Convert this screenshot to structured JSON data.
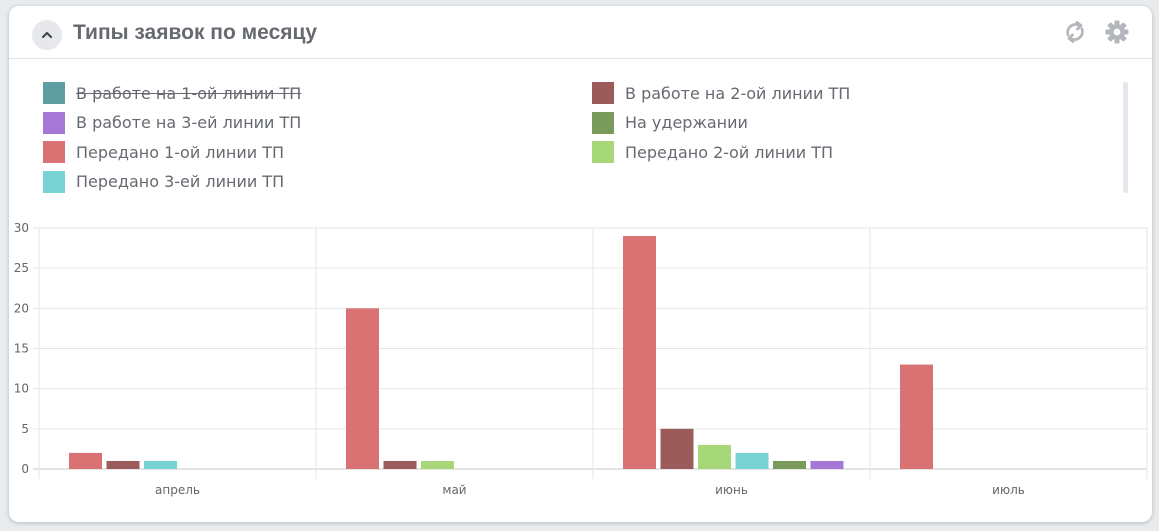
{
  "widget": {
    "title": "Типы заявок по месяцу",
    "icons": {
      "collapse": "chevron-up-icon",
      "refresh": "refresh-icon",
      "settings": "gear-icon"
    }
  },
  "chart_data": {
    "type": "bar",
    "title": "",
    "xlabel": "",
    "ylabel": "",
    "categories": [
      "апрель",
      "май",
      "июнь",
      "июль"
    ],
    "ylim": [
      0,
      30
    ],
    "yticks": [
      0,
      5,
      10,
      15,
      20,
      25,
      30
    ],
    "grid": true,
    "legend_position": "top",
    "series": [
      {
        "name": "В работе на 1-ой линии ТП",
        "color": "#5f9ea0",
        "hidden": true,
        "values": [
          0,
          0,
          0,
          0
        ]
      },
      {
        "name": "В работе на 2-ой линии ТП",
        "color": "#9b5b5b",
        "hidden": false,
        "values": [
          1,
          1,
          5,
          0
        ]
      },
      {
        "name": "В работе на 3-ей линии ТП",
        "color": "#a678d6",
        "hidden": false,
        "values": [
          0,
          0,
          1,
          0
        ]
      },
      {
        "name": "На удержании",
        "color": "#7a9a5c",
        "hidden": false,
        "values": [
          0,
          0,
          1,
          0
        ]
      },
      {
        "name": "Передано 1-ой линии ТП",
        "color": "#d97373",
        "hidden": false,
        "values": [
          2,
          20,
          29,
          13
        ]
      },
      {
        "name": "Передано 2-ой линии ТП",
        "color": "#a6d87a",
        "hidden": false,
        "values": [
          0,
          1,
          3,
          0
        ]
      },
      {
        "name": "Передано 3-ей линии ТП",
        "color": "#78d4d4",
        "hidden": false,
        "values": [
          1,
          0,
          2,
          0
        ]
      }
    ]
  }
}
